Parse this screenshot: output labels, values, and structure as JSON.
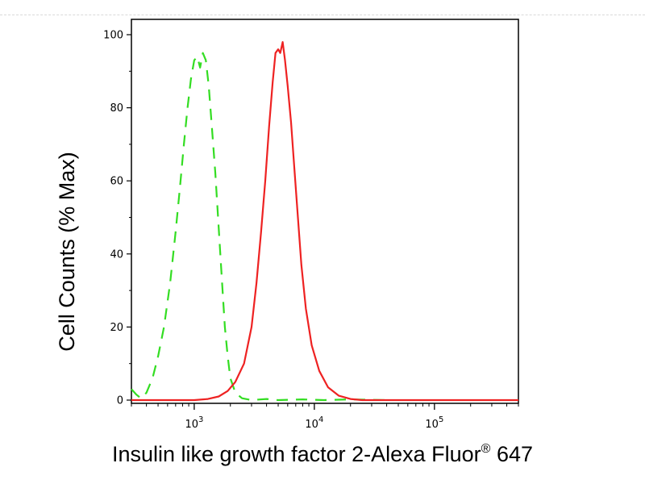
{
  "chart_data": {
    "type": "line",
    "title": "",
    "xlabel": "Insulin like growth factor 2-Alexa Fluor",
    "xlabel_superscript": "®",
    "xlabel_suffix": " 647",
    "ylabel": "Cell Counts (% Max)",
    "x_scale": "log",
    "xlim": [
      300,
      500000
    ],
    "ylim": [
      0,
      100
    ],
    "x_ticks": [
      {
        "value": 1000,
        "base": "10",
        "exp": "3"
      },
      {
        "value": 10000,
        "base": "10",
        "exp": "4"
      },
      {
        "value": 100000,
        "base": "10",
        "exp": "5"
      }
    ],
    "y_ticks": [
      0,
      20,
      40,
      60,
      80,
      100
    ],
    "grid": false,
    "series": [
      {
        "color": "#33dd22",
        "line_style": "dashed",
        "points": [
          [
            300,
            3
          ],
          [
            330,
            1.5
          ],
          [
            360,
            0.5
          ],
          [
            400,
            2
          ],
          [
            450,
            6
          ],
          [
            500,
            12
          ],
          [
            560,
            20
          ],
          [
            630,
            32
          ],
          [
            700,
            46
          ],
          [
            760,
            58
          ],
          [
            820,
            70
          ],
          [
            880,
            80
          ],
          [
            940,
            88
          ],
          [
            1000,
            93
          ],
          [
            1060,
            94
          ],
          [
            1120,
            91
          ],
          [
            1180,
            95
          ],
          [
            1250,
            93
          ],
          [
            1320,
            86
          ],
          [
            1400,
            75
          ],
          [
            1500,
            62
          ],
          [
            1600,
            47
          ],
          [
            1700,
            33
          ],
          [
            1800,
            20
          ],
          [
            1900,
            12
          ],
          [
            2000,
            6
          ],
          [
            2200,
            2
          ],
          [
            2500,
            0.5
          ],
          [
            3000,
            0
          ],
          [
            4000,
            0.3
          ],
          [
            5000,
            0
          ],
          [
            8000,
            0.2
          ],
          [
            12000,
            0
          ],
          [
            20000,
            0.2
          ],
          [
            40000,
            0
          ]
        ]
      },
      {
        "color": "#ee2222",
        "line_style": "solid",
        "points": [
          [
            300,
            0
          ],
          [
            1000,
            0
          ],
          [
            1300,
            0.3
          ],
          [
            1600,
            1
          ],
          [
            1900,
            2.5
          ],
          [
            2200,
            5
          ],
          [
            2600,
            10
          ],
          [
            3000,
            20
          ],
          [
            3300,
            32
          ],
          [
            3600,
            46
          ],
          [
            3900,
            60
          ],
          [
            4200,
            75
          ],
          [
            4500,
            87
          ],
          [
            4750,
            95
          ],
          [
            5000,
            96
          ],
          [
            5200,
            95
          ],
          [
            5450,
            98
          ],
          [
            5700,
            93
          ],
          [
            6000,
            86
          ],
          [
            6400,
            76
          ],
          [
            6800,
            64
          ],
          [
            7300,
            50
          ],
          [
            7800,
            37
          ],
          [
            8500,
            25
          ],
          [
            9500,
            15
          ],
          [
            11000,
            8
          ],
          [
            13000,
            3.5
          ],
          [
            16000,
            1.2
          ],
          [
            20000,
            0.3
          ],
          [
            25000,
            0
          ],
          [
            50000,
            0
          ],
          [
            100000,
            0
          ],
          [
            500000,
            0
          ]
        ]
      }
    ]
  }
}
